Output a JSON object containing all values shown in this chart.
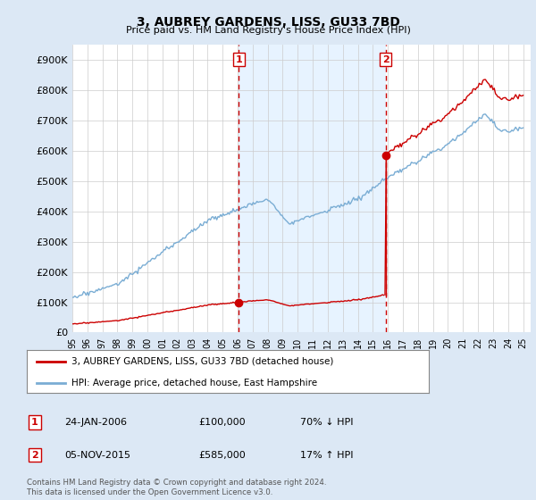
{
  "title": "3, AUBREY GARDENS, LISS, GU33 7BD",
  "subtitle": "Price paid vs. HM Land Registry's House Price Index (HPI)",
  "ylim": [
    0,
    950000
  ],
  "yticks": [
    0,
    100000,
    200000,
    300000,
    400000,
    500000,
    600000,
    700000,
    800000,
    900000
  ],
  "ytick_labels": [
    "£0",
    "£100K",
    "£200K",
    "£300K",
    "£400K",
    "£500K",
    "£600K",
    "£700K",
    "£800K",
    "£900K"
  ],
  "hpi_color": "#7aadd4",
  "price_color": "#cc0000",
  "vline_color": "#cc0000",
  "shade_color": "#ddeeff",
  "marker1_date": 2006.07,
  "marker1_price": 100000,
  "marker2_date": 2015.84,
  "marker2_price": 585000,
  "legend_entries": [
    "3, AUBREY GARDENS, LISS, GU33 7BD (detached house)",
    "HPI: Average price, detached house, East Hampshire"
  ],
  "table_rows": [
    [
      "1",
      "24-JAN-2006",
      "£100,000",
      "70% ↓ HPI"
    ],
    [
      "2",
      "05-NOV-2015",
      "£585,000",
      "17% ↑ HPI"
    ]
  ],
  "footnote": "Contains HM Land Registry data © Crown copyright and database right 2024.\nThis data is licensed under the Open Government Licence v3.0.",
  "background_color": "#dce8f5",
  "plot_bg_color": "#ffffff",
  "grid_color": "#cccccc"
}
